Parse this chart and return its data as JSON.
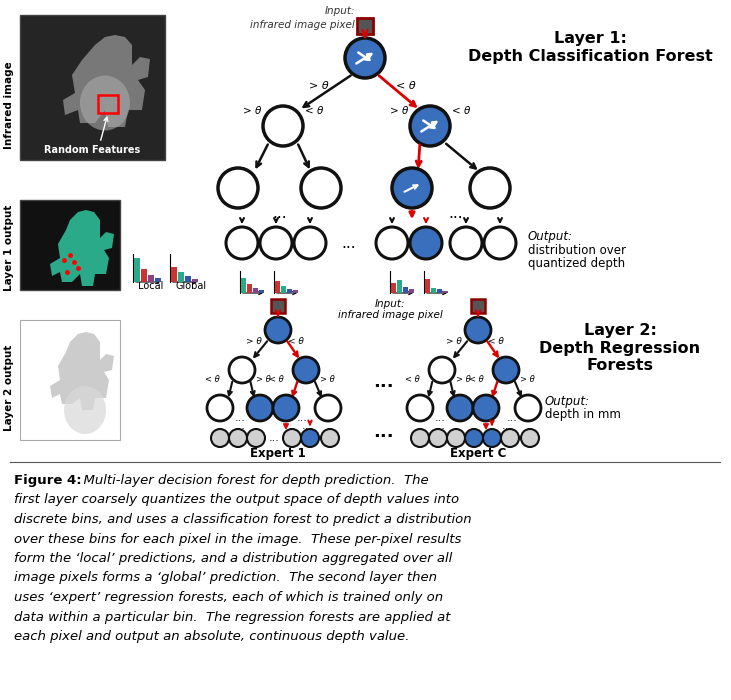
{
  "bg_color": "#ffffff",
  "fig_width": 7.31,
  "fig_height": 7.0,
  "node_blue": "#3a6fbe",
  "node_white": "#ffffff",
  "node_gray": "#d0d0d0",
  "node_edge": "#111111",
  "arrow_red": "#dd0000",
  "arrow_black": "#111111",
  "layer1_title_line1": "Layer 1:",
  "layer1_title_line2": "Depth Classification Forest",
  "layer2_title_line1": "Layer 2:",
  "layer2_title_line2": "Depth Regression",
  "layer2_title_line3": "Forests",
  "output1_line1": "Output:",
  "output1_line2": "distribution over",
  "output1_line3": "quantized depth",
  "output2_line1": "Output:",
  "output2_line2": "depth in mm",
  "input_line1": "Input:",
  "input_line2": "infrared image pixel",
  "infrared_label": "Infrared image",
  "layer1_out_label": "Layer 1 output",
  "layer2_out_label": "Layer 2 output",
  "local_label": "Local",
  "global_label": "Global",
  "random_features_label": "Random Features",
  "expert1_label": "Expert 1",
  "expertC_label": "Expert C",
  "caption_bold": "Figure 4:",
  "caption_text": "  Multi-layer decision forest for depth prediction.  The first layer coarsely quantizes the output space of depth values into discrete bins, and uses a classification forest to predict a distribution over these bins for each pixel in the image.  These per-pixel results form the ‘local’ predictions, and a distribution aggregated over all image pixels forms a ‘global’ prediction.  The second layer then uses ‘expert’ regression forests, each of which is trained only on data within a particular bin.  The regression forests are applied at each pixel and output an absolute, continuous depth value."
}
